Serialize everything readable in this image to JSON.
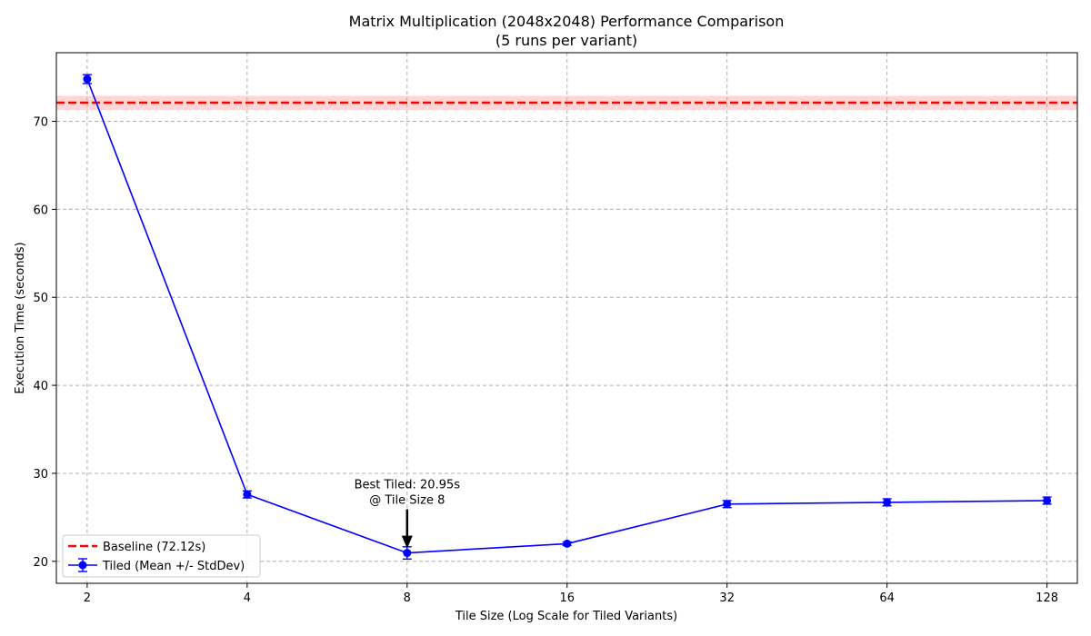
{
  "chart_data": {
    "type": "line",
    "title": "Matrix Multiplication (2048x2048) Performance Comparison",
    "subtitle": "(5 runs per variant)",
    "xlabel": "Tile Size (Log Scale for Tiled Variants)",
    "ylabel": "Execution Time (seconds)",
    "x_scale": "log2",
    "x_ticks": [
      "2",
      "4",
      "8",
      "16",
      "32",
      "64",
      "128"
    ],
    "y_ticks": [
      "20",
      "30",
      "40",
      "50",
      "60",
      "70"
    ],
    "xlim": [
      1.75,
      146
    ],
    "ylim": [
      17.5,
      77.8
    ],
    "grid": true,
    "legend_position": "lower-left",
    "series": [
      {
        "name": "Tiled (Mean +/- StdDev)",
        "color": "#0000ff",
        "x": [
          2,
          4,
          8,
          16,
          32,
          64,
          128
        ],
        "y": [
          74.8,
          27.6,
          20.95,
          22.0,
          26.5,
          26.7,
          26.9
        ],
        "err": [
          0.5,
          0.4,
          0.7,
          0.2,
          0.4,
          0.4,
          0.4
        ]
      }
    ],
    "baseline": {
      "name": "Baseline (72.12s)",
      "value": 72.12,
      "band": [
        71.3,
        72.9
      ],
      "color": "#ff0000",
      "band_color": "#ffd6d6"
    },
    "annotation": {
      "line1": "Best Tiled: 20.95s",
      "line2": "@ Tile Size 8",
      "x": 8,
      "y": 20.95
    }
  }
}
